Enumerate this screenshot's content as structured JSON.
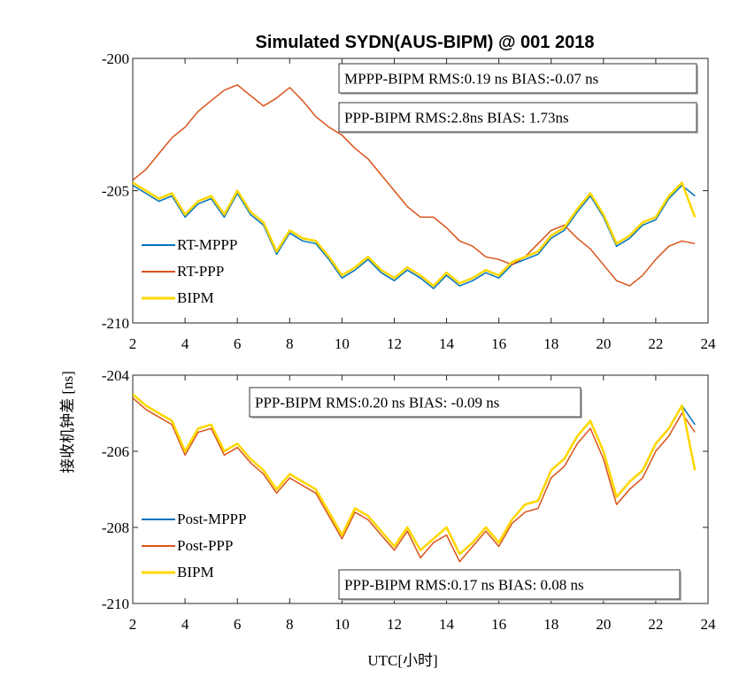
{
  "chart_data": [
    {
      "type": "line",
      "title": "Simulated SYDN(AUS-BIPM) @ 001 2018",
      "xlabel": "",
      "ylabel": "",
      "xlim": [
        2,
        24
      ],
      "ylim": [
        -210,
        -200
      ],
      "xticks": [
        "2",
        "4",
        "6",
        "8",
        "10",
        "12",
        "14",
        "16",
        "18",
        "20",
        "22",
        "24"
      ],
      "yticks": [
        "-200",
        "-205",
        "-210"
      ],
      "grid": false,
      "legend_position": "lower-left",
      "annotations": [
        "MPPP-BIPM RMS:0.19 ns BIAS:-0.07 ns",
        "PPP-BIPM RMS:2.8ns BIAS: 1.73ns"
      ],
      "x": [
        2.0,
        2.5,
        3.0,
        3.5,
        4.0,
        4.5,
        5.0,
        5.5,
        6.0,
        6.5,
        7.0,
        7.5,
        8.0,
        8.5,
        9.0,
        9.5,
        10.0,
        10.5,
        11.0,
        11.5,
        12.0,
        12.5,
        13.0,
        13.5,
        14.0,
        14.5,
        15.0,
        15.5,
        16.0,
        16.5,
        17.0,
        17.5,
        18.0,
        18.5,
        19.0,
        19.5,
        20.0,
        20.5,
        21.0,
        21.5,
        22.0,
        22.5,
        23.0,
        23.5
      ],
      "series": [
        {
          "name": "RT-MPPP",
          "color": "#0072BD",
          "values": [
            -204.8,
            -205.1,
            -205.4,
            -205.2,
            -206.0,
            -205.5,
            -205.3,
            -206.0,
            -205.1,
            -205.9,
            -206.3,
            -207.4,
            -206.6,
            -206.9,
            -207.0,
            -207.6,
            -208.3,
            -208.0,
            -207.6,
            -208.1,
            -208.4,
            -208.0,
            -208.3,
            -208.7,
            -208.2,
            -208.6,
            -208.4,
            -208.1,
            -208.3,
            -207.8,
            -207.6,
            -207.4,
            -206.8,
            -206.5,
            -205.8,
            -205.2,
            -206.0,
            -207.1,
            -206.8,
            -206.3,
            -206.1,
            -205.3,
            -204.8,
            -205.2
          ]
        },
        {
          "name": "RT-PPP",
          "color": "#D95319",
          "values": [
            -204.6,
            -204.2,
            -203.6,
            -203.0,
            -202.6,
            -202.0,
            -201.6,
            -201.2,
            -201.0,
            -201.4,
            -201.8,
            -201.5,
            -201.1,
            -201.6,
            -202.2,
            -202.6,
            -202.9,
            -203.4,
            -203.8,
            -204.4,
            -205.0,
            -205.6,
            -206.0,
            -206.0,
            -206.4,
            -206.9,
            -207.1,
            -207.5,
            -207.6,
            -207.8,
            -207.5,
            -207.0,
            -206.5,
            -206.3,
            -206.8,
            -207.2,
            -207.8,
            -208.4,
            -208.6,
            -208.2,
            -207.6,
            -207.1,
            -206.9,
            -207.0
          ]
        },
        {
          "name": "BIPM",
          "color": "#FFD700",
          "values": [
            -204.7,
            -205.0,
            -205.3,
            -205.1,
            -205.9,
            -205.4,
            -205.2,
            -205.9,
            -205.0,
            -205.8,
            -206.2,
            -207.3,
            -206.5,
            -206.8,
            -206.9,
            -207.5,
            -208.2,
            -207.9,
            -207.5,
            -208.0,
            -208.3,
            -207.9,
            -208.2,
            -208.6,
            -208.1,
            -208.5,
            -208.3,
            -208.0,
            -208.2,
            -207.7,
            -207.5,
            -207.3,
            -206.7,
            -206.4,
            -205.7,
            -205.1,
            -205.9,
            -207.0,
            -206.7,
            -206.2,
            -206.0,
            -205.2,
            -204.7,
            -206.0
          ]
        }
      ]
    },
    {
      "type": "line",
      "title": "",
      "xlabel": "UTC[小时]",
      "ylabel": "接收机钟差 [ns]",
      "xlim": [
        2,
        24
      ],
      "ylim": [
        -210,
        -204
      ],
      "xticks": [
        "2",
        "4",
        "6",
        "8",
        "10",
        "12",
        "14",
        "16",
        "18",
        "20",
        "22",
        "24"
      ],
      "yticks": [
        "-204",
        "-206",
        "-208",
        "-210"
      ],
      "grid": false,
      "legend_position": "lower-left",
      "annotations": [
        "PPP-BIPM RMS:0.20 ns BIAS: -0.09 ns",
        "PPP-BIPM RMS:0.17 ns BIAS: 0.08 ns"
      ],
      "x": [
        2.0,
        2.5,
        3.0,
        3.5,
        4.0,
        4.5,
        5.0,
        5.5,
        6.0,
        6.5,
        7.0,
        7.5,
        8.0,
        8.5,
        9.0,
        9.5,
        10.0,
        10.5,
        11.0,
        11.5,
        12.0,
        12.5,
        13.0,
        13.5,
        14.0,
        14.5,
        15.0,
        15.5,
        16.0,
        16.5,
        17.0,
        17.5,
        18.0,
        18.5,
        19.0,
        19.5,
        20.0,
        20.5,
        21.0,
        21.5,
        22.0,
        22.5,
        23.0,
        23.5
      ],
      "series": [
        {
          "name": "Post-MPPP",
          "color": "#0072BD",
          "values": [
            -204.5,
            -204.8,
            -205.0,
            -205.2,
            -206.0,
            -205.4,
            -205.3,
            -206.0,
            -205.8,
            -206.2,
            -206.5,
            -207.0,
            -206.6,
            -206.8,
            -207.0,
            -207.6,
            -208.2,
            -207.5,
            -207.7,
            -208.1,
            -208.5,
            -208.0,
            -208.6,
            -208.3,
            -208.0,
            -208.7,
            -208.4,
            -208.0,
            -208.4,
            -207.8,
            -207.4,
            -207.3,
            -206.5,
            -206.2,
            -205.6,
            -205.2,
            -206.0,
            -207.2,
            -206.8,
            -206.5,
            -205.8,
            -205.4,
            -204.8,
            -205.3
          ]
        },
        {
          "name": "Post-PPP",
          "color": "#D95319",
          "values": [
            -204.6,
            -204.9,
            -205.1,
            -205.3,
            -206.1,
            -205.5,
            -205.4,
            -206.1,
            -205.9,
            -206.3,
            -206.6,
            -207.1,
            -206.7,
            -206.9,
            -207.1,
            -207.7,
            -208.3,
            -207.6,
            -207.8,
            -208.2,
            -208.6,
            -208.1,
            -208.8,
            -208.4,
            -208.2,
            -208.9,
            -208.5,
            -208.1,
            -208.5,
            -207.9,
            -207.6,
            -207.5,
            -206.7,
            -206.4,
            -205.8,
            -205.4,
            -206.2,
            -207.4,
            -207.0,
            -206.7,
            -206.0,
            -205.6,
            -205.0,
            -205.5
          ]
        },
        {
          "name": "BIPM",
          "color": "#FFD700",
          "values": [
            -204.5,
            -204.8,
            -205.0,
            -205.2,
            -206.0,
            -205.4,
            -205.3,
            -206.0,
            -205.8,
            -206.2,
            -206.5,
            -207.0,
            -206.6,
            -206.8,
            -207.0,
            -207.6,
            -208.2,
            -207.5,
            -207.7,
            -208.1,
            -208.5,
            -208.0,
            -208.6,
            -208.3,
            -208.0,
            -208.7,
            -208.4,
            -208.0,
            -208.4,
            -207.8,
            -207.4,
            -207.3,
            -206.5,
            -206.2,
            -205.6,
            -205.2,
            -206.0,
            -207.2,
            -206.8,
            -206.5,
            -205.8,
            -205.4,
            -204.8,
            -206.5
          ]
        }
      ]
    }
  ]
}
